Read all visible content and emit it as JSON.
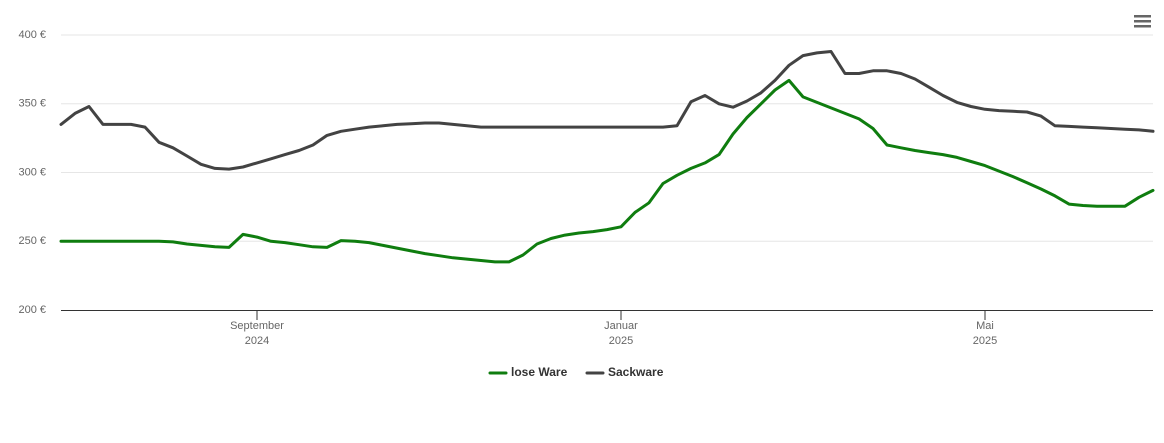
{
  "chart_data": {
    "type": "line",
    "categories": [
      null,
      null,
      null,
      null,
      null,
      null,
      null,
      null,
      null,
      null,
      null,
      null,
      null,
      null,
      "September\n2024",
      null,
      null,
      null,
      null,
      null,
      null,
      null,
      null,
      null,
      null,
      null,
      null,
      null,
      null,
      null,
      null,
      null,
      null,
      null,
      null,
      null,
      null,
      null,
      null,
      null,
      "Januar\n2025",
      null,
      null,
      null,
      null,
      null,
      null,
      null,
      null,
      null,
      null,
      null,
      null,
      null,
      null,
      null,
      null,
      null,
      null,
      null,
      null,
      null,
      null,
      null,
      null,
      null,
      "Mai\n2025",
      null,
      null,
      null,
      null,
      null,
      null,
      null,
      null,
      null,
      null,
      null,
      null
    ],
    "series": [
      {
        "name": "lose Ware",
        "color": "#0f7d0f",
        "values": [
          250,
          250,
          250,
          250,
          250,
          250,
          250,
          250,
          249.5,
          248,
          247,
          246,
          245.5,
          255,
          253,
          250,
          249,
          247.5,
          246,
          245.5,
          250.5,
          250,
          249,
          247,
          245,
          243,
          241,
          239.5,
          238,
          237,
          236,
          235,
          235,
          240,
          248,
          252,
          254.5,
          256,
          257,
          258.5,
          260.5,
          271,
          278,
          292,
          298,
          303,
          307,
          313,
          328,
          340,
          350,
          360,
          367,
          355,
          351,
          347,
          343,
          339,
          332,
          320,
          318,
          316,
          314.5,
          313,
          311,
          308,
          305,
          301,
          297,
          292.5,
          288,
          283,
          277,
          276,
          275.5,
          275.5,
          275.5,
          282,
          287
        ]
      },
      {
        "name": "Sackware",
        "color": "#434343",
        "values": [
          335,
          343,
          348,
          335,
          335,
          335,
          333,
          322,
          318,
          312,
          306,
          303,
          302.5,
          304,
          307,
          310,
          313,
          316,
          320,
          327,
          330,
          331.5,
          333,
          334,
          335,
          335.5,
          336,
          336,
          335,
          334,
          333,
          333,
          333,
          333,
          333,
          333,
          333,
          333,
          333,
          333,
          333,
          333,
          333,
          333,
          334,
          351.5,
          356,
          350,
          347.5,
          352,
          358,
          367,
          378,
          385,
          387,
          388,
          372,
          372,
          374,
          374,
          372,
          368,
          362,
          356,
          351,
          348,
          346,
          345,
          344.5,
          344,
          341,
          334,
          333.5,
          333,
          332.5,
          332,
          331.5,
          331,
          330
        ]
      }
    ],
    "ylim": [
      200,
      400
    ],
    "yticks": [
      {
        "value": 200,
        "label": "200 €"
      },
      {
        "value": 250,
        "label": "250 €"
      },
      {
        "value": 300,
        "label": "300 €"
      },
      {
        "value": 350,
        "label": "350 €"
      },
      {
        "value": 400,
        "label": "400 €"
      }
    ],
    "grid": true,
    "legend": "bottom"
  }
}
